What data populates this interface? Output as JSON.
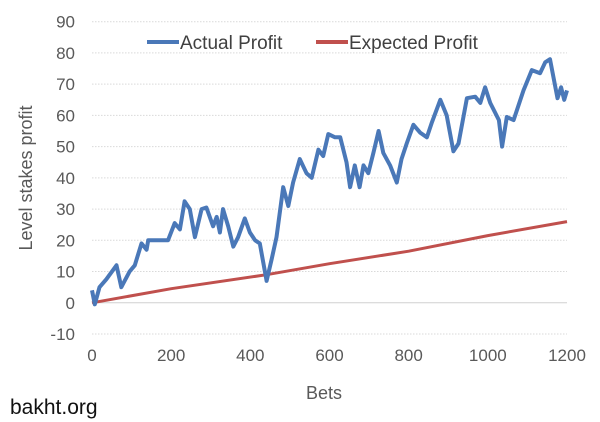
{
  "chart_data": {
    "type": "line",
    "title": "",
    "xlabel": "Bets",
    "ylabel": "Level stakes profit",
    "xlim": [
      0,
      1200
    ],
    "ylim": [
      -10,
      90
    ],
    "xticks": [
      0,
      200,
      400,
      600,
      800,
      1000,
      1200
    ],
    "yticks": [
      -10,
      0,
      10,
      20,
      30,
      40,
      50,
      60,
      70,
      80,
      90
    ],
    "grid": true,
    "legend_position": "top-center",
    "series": [
      {
        "name": "Actual Profit",
        "color": "#4a78b8",
        "x": [
          0,
          7,
          19,
          36,
          62,
          74,
          95,
          108,
          125,
          138,
          142,
          163,
          192,
          209,
          222,
          234,
          247,
          260,
          277,
          289,
          306,
          315,
          323,
          331,
          344,
          357,
          369,
          386,
          399,
          412,
          424,
          441,
          454,
          466,
          483,
          496,
          508,
          525,
          542,
          555,
          572,
          584,
          597,
          614,
          627,
          643,
          652,
          664,
          676,
          686,
          698,
          711,
          724,
          736,
          753,
          770,
          782,
          795,
          812,
          829,
          846,
          858,
          880,
          896,
          913,
          926,
          947,
          968,
          981,
          993,
          1006,
          1028,
          1036,
          1048,
          1065,
          1090,
          1111,
          1132,
          1145,
          1157,
          1176,
          1185,
          1193,
          1200
        ],
        "y": [
          4,
          -0.5,
          5,
          7.5,
          12,
          5,
          10,
          12,
          19,
          17,
          20,
          20,
          20,
          25.5,
          23.5,
          32.5,
          30,
          21,
          30,
          30.5,
          24.5,
          27.5,
          22.5,
          30,
          24.5,
          18,
          21,
          27,
          22.5,
          20,
          19,
          7,
          14,
          21,
          37,
          31,
          38.5,
          46,
          41.5,
          40,
          49,
          47,
          54,
          53,
          53,
          45,
          37,
          44,
          37,
          44,
          41.5,
          48,
          55,
          48,
          44,
          38.5,
          46,
          51,
          57,
          54.5,
          53,
          57.5,
          65,
          60,
          48.5,
          51,
          65.5,
          66,
          64,
          69,
          64,
          58.5,
          50,
          59.5,
          58.5,
          68,
          74.5,
          73.5,
          77,
          78,
          65.5,
          69,
          65,
          68
        ]
      },
      {
        "name": "Expected Profit",
        "color": "#c0504d",
        "x": [
          0,
          200,
          441,
          600,
          800,
          1000,
          1200
        ],
        "y": [
          0,
          4.5,
          9,
          12.5,
          16.5,
          21.5,
          26
        ]
      }
    ]
  },
  "watermark": "bakht.org"
}
